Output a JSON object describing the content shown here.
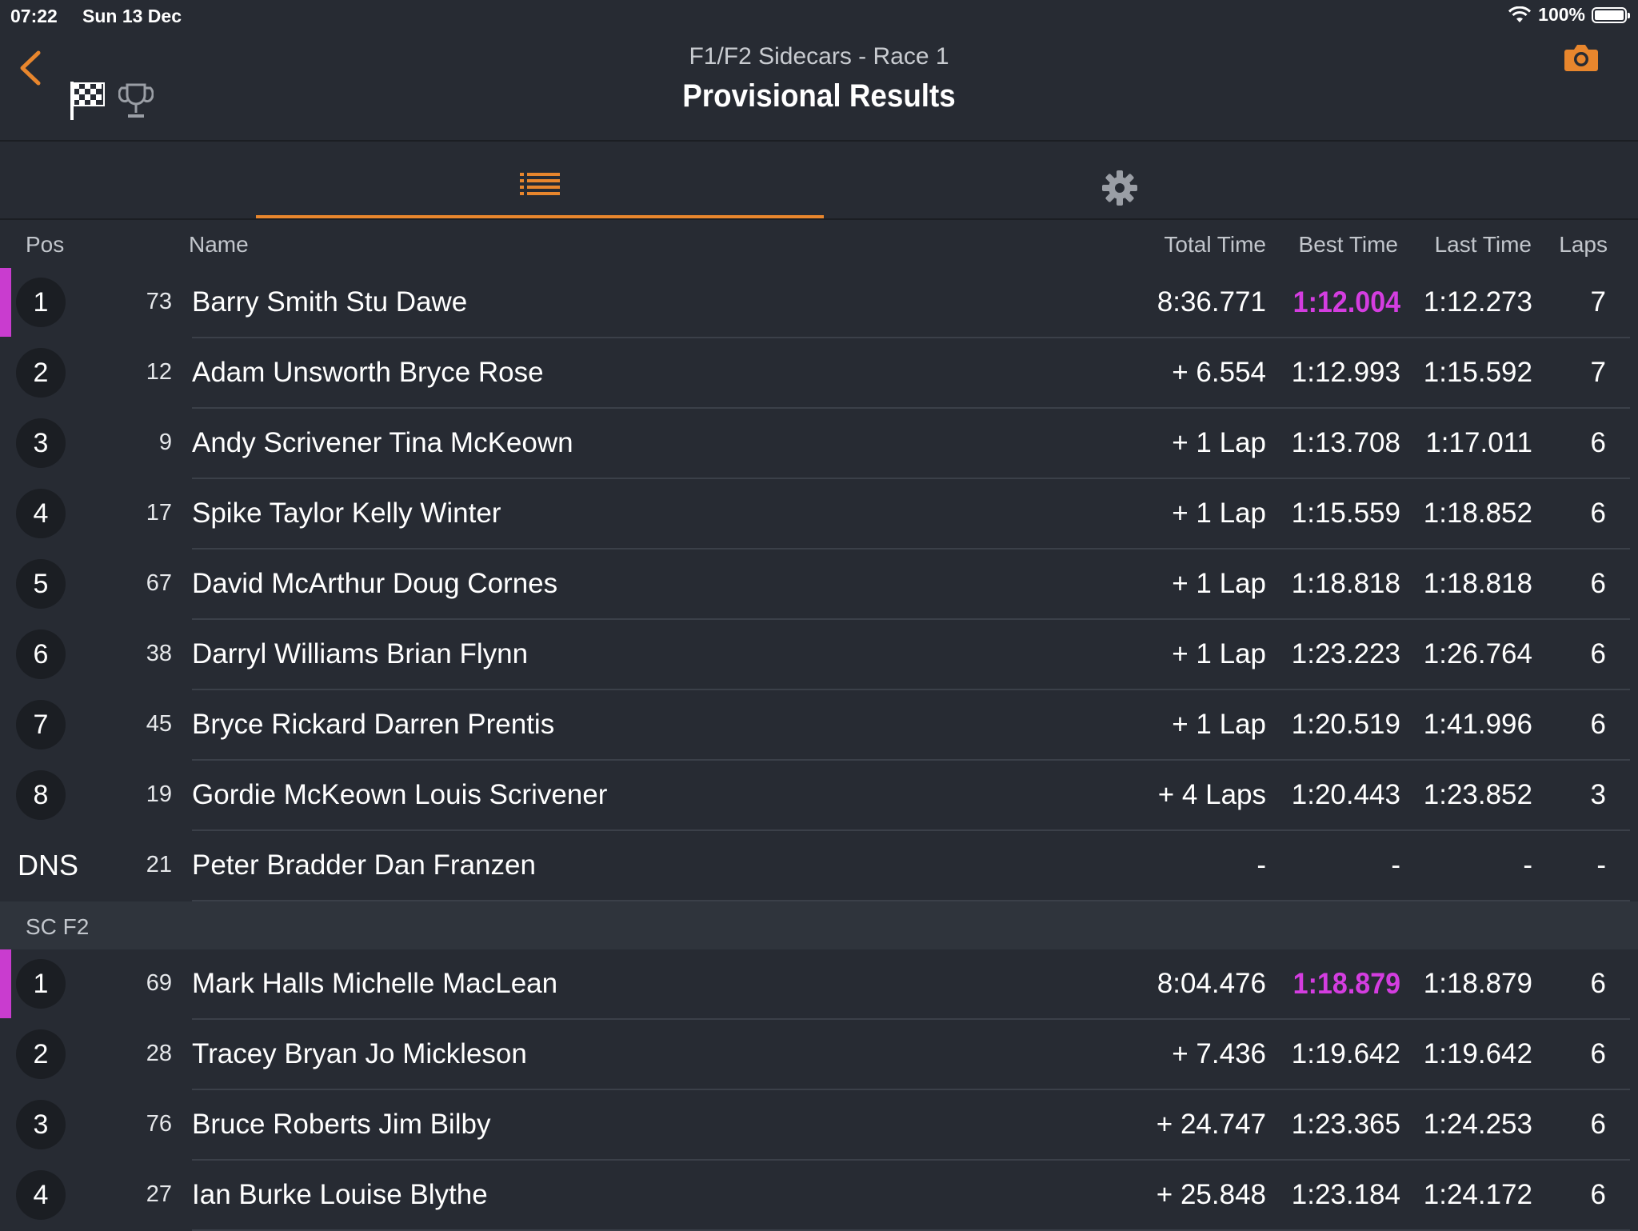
{
  "status_bar": {
    "time": "07:22",
    "date": "Sun 13 Dec",
    "battery": "100%"
  },
  "header": {
    "subtitle": "F1/F2 Sidecars - Race 1",
    "title": "Provisional Results"
  },
  "colors": {
    "accent": "#e8862d",
    "fastest_lap": "#d43de0",
    "background": "#272b33"
  },
  "tabs": [
    {
      "icon": "list-icon",
      "active": true
    },
    {
      "icon": "gear-icon",
      "active": false
    }
  ],
  "columns": {
    "pos": "Pos",
    "name": "Name",
    "total": "Total Time",
    "best": "Best Time",
    "last": "Last Time",
    "laps": "Laps"
  },
  "sections": [
    {
      "title": "",
      "rows": [
        {
          "pos": "1",
          "num": "73",
          "name": "Barry Smith Stu Dawe",
          "total": "8:36.771",
          "best": "1:12.004",
          "last": "1:12.273",
          "laps": "7",
          "fastest": true
        },
        {
          "pos": "2",
          "num": "12",
          "name": "Adam Unsworth Bryce Rose",
          "total": "+ 6.554",
          "best": "1:12.993",
          "last": "1:15.592",
          "laps": "7"
        },
        {
          "pos": "3",
          "num": "9",
          "name": "Andy Scrivener Tina McKeown",
          "total": "+ 1 Lap",
          "best": "1:13.708",
          "last": "1:17.011",
          "laps": "6"
        },
        {
          "pos": "4",
          "num": "17",
          "name": "Spike Taylor Kelly Winter",
          "total": "+ 1 Lap",
          "best": "1:15.559",
          "last": "1:18.852",
          "laps": "6"
        },
        {
          "pos": "5",
          "num": "67",
          "name": "David McArthur Doug Cornes",
          "total": "+ 1 Lap",
          "best": "1:18.818",
          "last": "1:18.818",
          "laps": "6"
        },
        {
          "pos": "6",
          "num": "38",
          "name": "Darryl Williams Brian Flynn",
          "total": "+ 1 Lap",
          "best": "1:23.223",
          "last": "1:26.764",
          "laps": "6"
        },
        {
          "pos": "7",
          "num": "45",
          "name": "Bryce Rickard Darren Prentis",
          "total": "+ 1 Lap",
          "best": "1:20.519",
          "last": "1:41.996",
          "laps": "6"
        },
        {
          "pos": "8",
          "num": "19",
          "name": "Gordie McKeown Louis Scrivener",
          "total": "+ 4 Laps",
          "best": "1:20.443",
          "last": "1:23.852",
          "laps": "3"
        },
        {
          "pos": "DNS",
          "num": "21",
          "name": "Peter Bradder Dan Franzen",
          "total": "-",
          "best": "-",
          "last": "-",
          "laps": "-",
          "plain": true
        }
      ]
    },
    {
      "title": "SC F2",
      "rows": [
        {
          "pos": "1",
          "num": "69",
          "name": "Mark Halls Michelle MacLean",
          "total": "8:04.476",
          "best": "1:18.879",
          "last": "1:18.879",
          "laps": "6",
          "fastest": true
        },
        {
          "pos": "2",
          "num": "28",
          "name": "Tracey Bryan Jo Mickleson",
          "total": "+ 7.436",
          "best": "1:19.642",
          "last": "1:19.642",
          "laps": "6"
        },
        {
          "pos": "3",
          "num": "76",
          "name": "Bruce Roberts Jim Bilby",
          "total": "+ 24.747",
          "best": "1:23.365",
          "last": "1:24.253",
          "laps": "6"
        },
        {
          "pos": "4",
          "num": "27",
          "name": "Ian Burke Louise Blythe",
          "total": "+ 25.848",
          "best": "1:23.184",
          "last": "1:24.172",
          "laps": "6"
        }
      ]
    }
  ]
}
